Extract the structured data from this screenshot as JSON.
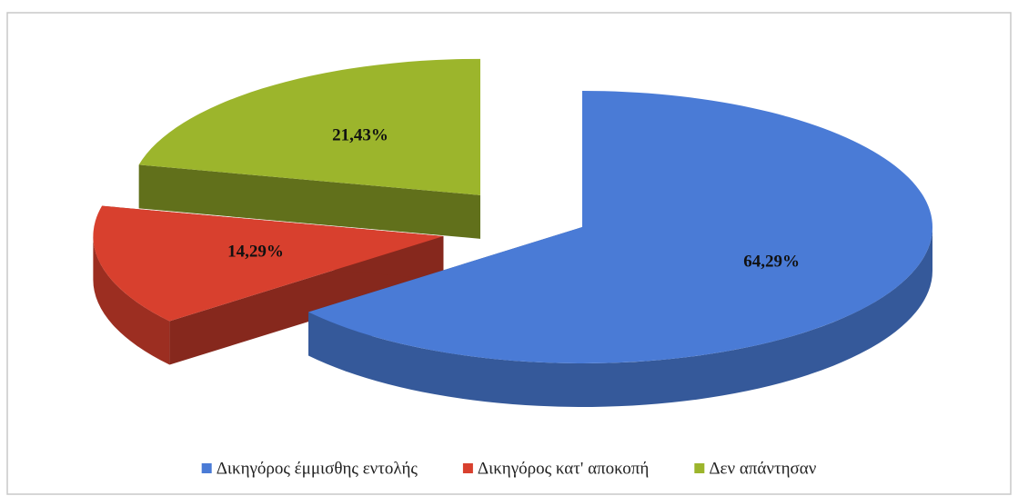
{
  "chart_data": {
    "type": "pie3d",
    "categories": [
      "Δικηγόρος έμμισθης εντολής",
      "Δικηγόρος κατ' αποκοπή",
      "Δεν απάντησαν"
    ],
    "values": [
      64.29,
      14.29,
      21.43
    ],
    "value_labels": [
      "64,29%",
      "14,29%",
      "21,43%"
    ],
    "colors": [
      "#4a7bd6",
      "#d8402e",
      "#9cb52c"
    ],
    "legend": "bottom"
  }
}
